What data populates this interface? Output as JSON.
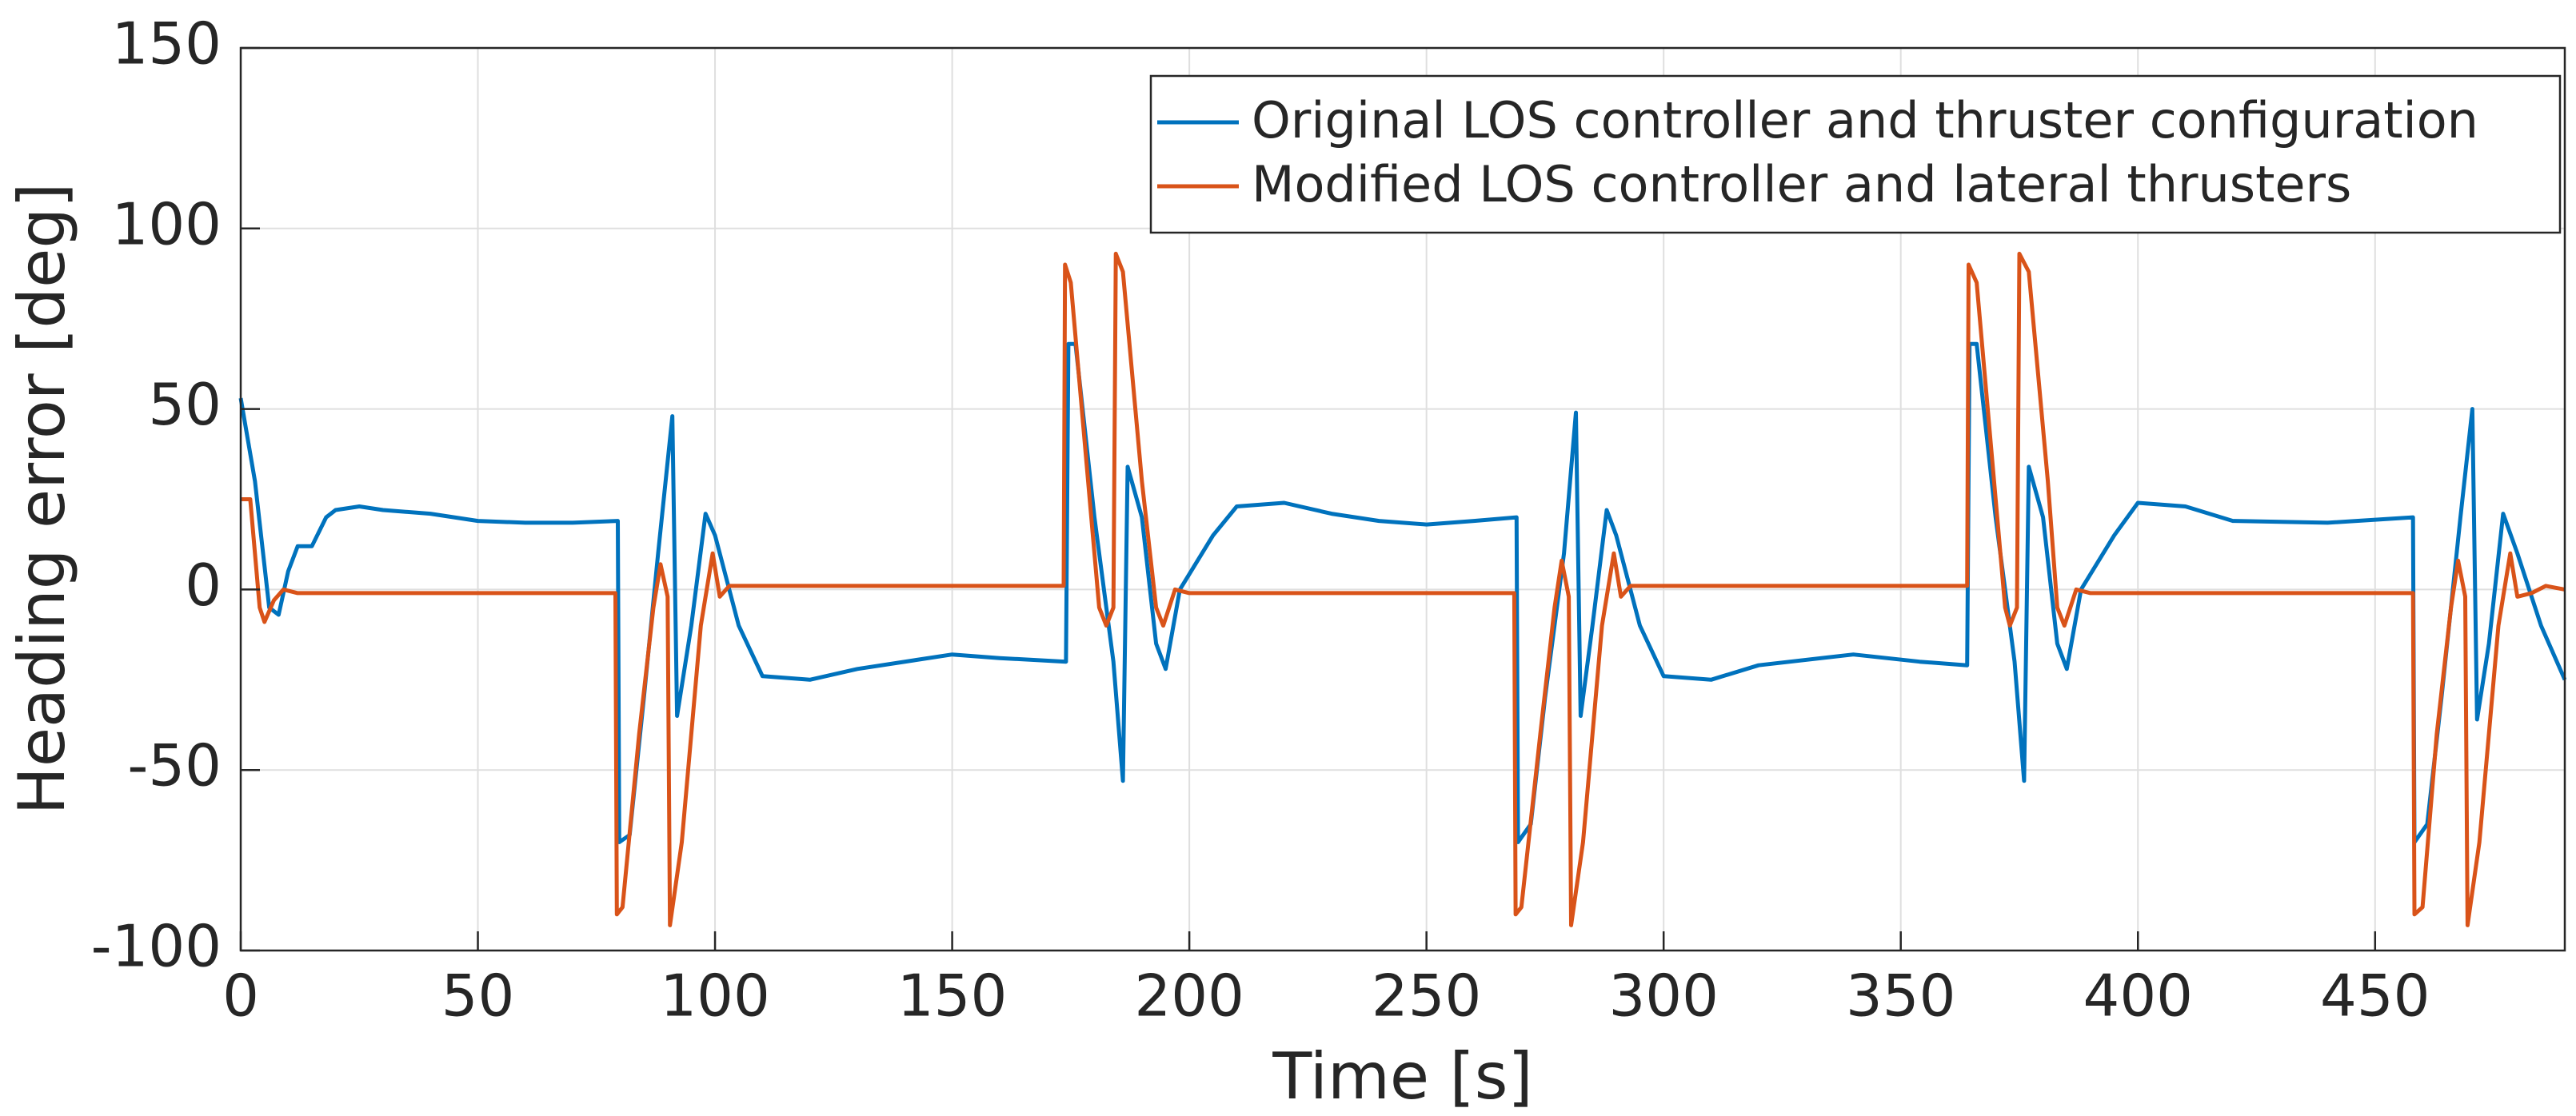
{
  "chart_data": {
    "type": "line",
    "xlabel": "Time [s]",
    "ylabel": "Heading error [deg]",
    "xlim": [
      0,
      490
    ],
    "ylim": [
      -100,
      150
    ],
    "xticks": [
      0,
      50,
      100,
      150,
      200,
      250,
      300,
      350,
      400,
      450
    ],
    "yticks": [
      -100,
      -50,
      0,
      50,
      100,
      150
    ],
    "grid": true,
    "legend": "northeast",
    "series": [
      {
        "name": "Original LOS controller and thruster configuration",
        "color": "#0072BD",
        "x": [
          0,
          3,
          6,
          8,
          10,
          12,
          15,
          18,
          20,
          25,
          30,
          40,
          50,
          60,
          70,
          79.5,
          79.8,
          82,
          85,
          88,
          91,
          92,
          95,
          98,
          100,
          105,
          110,
          120,
          130,
          150,
          160,
          174,
          174.5,
          176,
          180,
          184,
          186,
          187,
          190,
          193,
          195,
          198,
          205,
          210,
          220,
          230,
          240,
          250,
          260,
          269,
          269.3,
          272,
          275,
          279,
          281.5,
          282.5,
          285,
          288,
          290,
          295,
          300,
          310,
          320,
          340,
          354,
          364,
          364.5,
          366,
          370,
          374,
          376,
          377,
          380,
          383,
          385,
          388,
          395,
          400,
          410,
          420,
          440,
          458,
          458.3,
          461,
          464,
          468,
          470.5,
          471.5,
          474,
          477,
          480,
          485,
          490
        ],
        "values": [
          53,
          30,
          -5,
          -7,
          5,
          12,
          12,
          20,
          22,
          23,
          22,
          21,
          19,
          18.5,
          18.5,
          19,
          -70,
          -68,
          -30,
          10,
          48,
          -35,
          -10,
          21,
          15,
          -10,
          -24,
          -25,
          -22,
          -18,
          -19,
          -20,
          68,
          68,
          20,
          -20,
          -53,
          34,
          20,
          -15,
          -22,
          0,
          15,
          23,
          24,
          21,
          19,
          18,
          19,
          20,
          -70,
          -65,
          -30,
          10,
          49,
          -35,
          -10,
          22,
          15,
          -10,
          -24,
          -25,
          -21,
          -18,
          -20,
          -21,
          68,
          68,
          20,
          -20,
          -53,
          34,
          20,
          -15,
          -22,
          0,
          15,
          24,
          23,
          19,
          18.5,
          20,
          -70,
          -65,
          -30,
          20,
          50,
          -36,
          -15,
          21,
          10,
          -10,
          -25
        ]
      },
      {
        "name": "Modified LOS controller and lateral thrusters",
        "color": "#D95319",
        "x": [
          0,
          2,
          4,
          5,
          7,
          9,
          12,
          20,
          79,
          79.3,
          80.5,
          84,
          87,
          88.5,
          90,
          90.5,
          93,
          97,
          99.5,
          101,
          103,
          170,
          173.5,
          173.8,
          175,
          178,
          181,
          182.5,
          184,
          184.5,
          186,
          190,
          193,
          194.5,
          197,
          200,
          268.5,
          268.8,
          270,
          274,
          277,
          278.5,
          280,
          280.5,
          283,
          287,
          289.5,
          291,
          293,
          364,
          364.3,
          366,
          369,
          372,
          373,
          374.5,
          375,
          377,
          381,
          383,
          384.5,
          387,
          390,
          458,
          458.3,
          460,
          463,
          466,
          467.5,
          469,
          469.5,
          472,
          476,
          478.5,
          480,
          483,
          486,
          490
        ],
        "values": [
          25,
          25,
          -5,
          -9,
          -3,
          0,
          -1,
          -1,
          -1,
          -90,
          -88,
          -40,
          -5,
          7,
          -2,
          -93,
          -70,
          -10,
          10,
          -2,
          1,
          1,
          1,
          90,
          85,
          40,
          -5,
          -10,
          -5,
          93,
          88,
          30,
          -5,
          -10,
          0,
          -1,
          -1,
          -90,
          -88,
          -40,
          -5,
          8,
          -2,
          -93,
          -70,
          -10,
          10,
          -2,
          1,
          1,
          90,
          85,
          40,
          -5,
          -10,
          -5,
          93,
          88,
          30,
          -5,
          -10,
          0,
          -1,
          -1,
          -90,
          -88,
          -40,
          -5,
          8,
          -2,
          -93,
          -70,
          -10,
          10,
          -2,
          -1,
          1,
          0
        ]
      }
    ]
  }
}
